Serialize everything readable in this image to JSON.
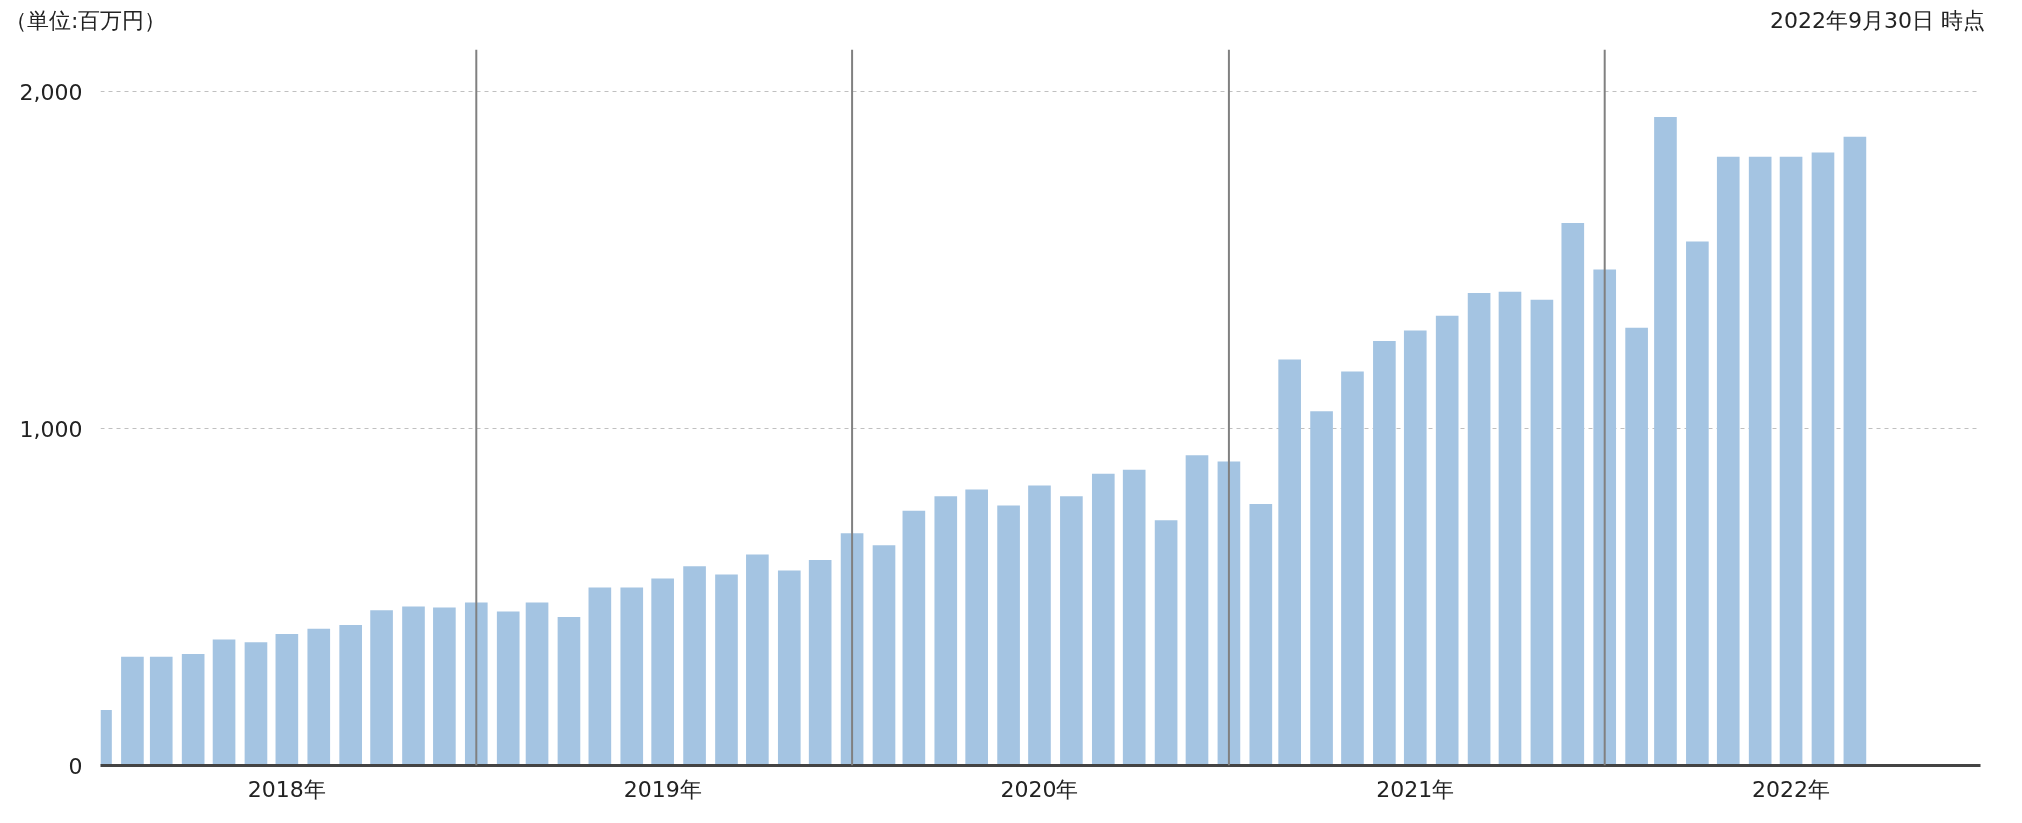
{
  "chart_data": {
    "type": "bar",
    "annotations": [
      "（単位:百万円）",
      "2022年9月30日 時点"
    ],
    "x": [
      "2018-01",
      "2018-02",
      "2018-03",
      "2018-04",
      "2018-05",
      "2018-06",
      "2018-07",
      "2018-08",
      "2018-09",
      "2018-10",
      "2018-11",
      "2018-12",
      "2019-01",
      "2019-02",
      "2019-03",
      "2019-04",
      "2019-05",
      "2019-06",
      "2019-07",
      "2019-08",
      "2019-09",
      "2019-10",
      "2019-11",
      "2019-12",
      "2020-01",
      "2020-02",
      "2020-03",
      "2020-04",
      "2020-05",
      "2020-06",
      "2020-07",
      "2020-08",
      "2020-09",
      "2020-10",
      "2020-11",
      "2020-12",
      "2021-01",
      "2021-02",
      "2021-03",
      "2021-04",
      "2021-05",
      "2021-06",
      "2021-07",
      "2021-08",
      "2021-09",
      "2021-10",
      "2021-11",
      "2021-12",
      "2022-01",
      "2022-02",
      "2022-03",
      "2022-04",
      "2022-05",
      "2022-06",
      "2022-07",
      "2022-08",
      "2022-09"
    ],
    "values": [
      165,
      323,
      323,
      331,
      374,
      366,
      390,
      406,
      417,
      461,
      472,
      469,
      484,
      457,
      484,
      441,
      528,
      528,
      555,
      591,
      567,
      626,
      579,
      610,
      689,
      654,
      756,
      799,
      819,
      772,
      831,
      799,
      866,
      878,
      728,
      921,
      902,
      776,
      1205,
      1051,
      1169,
      1260,
      1291,
      1335,
      1402,
      1406,
      1382,
      1610,
      1472,
      1299,
      1925,
      1555,
      1807,
      1807,
      1807,
      1819,
      1866
    ],
    "color": "#a4c4e2",
    "xlim": [
      "2018-01-01",
      "2023-01-01"
    ],
    "xticks": [
      {
        "value": "2018-07-01",
        "label": "2018年"
      },
      {
        "value": "2019-07-01",
        "label": "2019年"
      },
      {
        "value": "2020-07-01",
        "label": "2020年"
      },
      {
        "value": "2021-07-01",
        "label": "2021年"
      },
      {
        "value": "2022-07-01",
        "label": "2022年"
      }
    ],
    "ylim": [
      0,
      2125
    ],
    "yticks": [
      0,
      {
        "value": 1000,
        "label": "1,000"
      },
      {
        "value": 2000,
        "label": "2,000"
      }
    ],
    "grid": "y",
    "ref_lines": [
      {
        "axis": "x",
        "value": "2019-01-01",
        "color": "#808080"
      },
      {
        "axis": "x",
        "value": "2020-01-01",
        "color": "#808080"
      },
      {
        "axis": "x",
        "value": "2021-01-01",
        "color": "#808080"
      },
      {
        "axis": "x",
        "value": "2022-01-01",
        "color": "#808080"
      }
    ],
    "line_style": "solid",
    "legend": false
  }
}
